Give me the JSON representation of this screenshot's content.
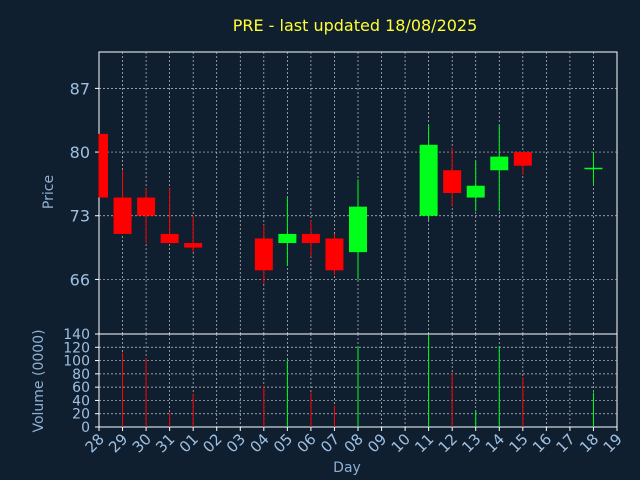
{
  "title": "PRE - last updated 18/08/2025",
  "colors": {
    "background": "#0f1f30",
    "title": "#ffff33",
    "axis_text": "#8fb0d0",
    "tick_text": "#9fc0e0",
    "frame": "#ffffff",
    "grid": "#c8c8c8",
    "up": "#00ff1a",
    "down": "#ff0000"
  },
  "chart_data": [
    {
      "type": "candlestick",
      "title": "PRE - last updated 18/08/2025",
      "ylabel": "Price",
      "ylim": [
        60,
        91
      ],
      "yticks": [
        66,
        73,
        80,
        87
      ],
      "grid": true,
      "x": [
        "28",
        "29",
        "30",
        "31",
        "01",
        "02",
        "03",
        "04",
        "05",
        "06",
        "07",
        "08",
        "09",
        "10",
        "11",
        "12",
        "13",
        "14",
        "15",
        "16",
        "17",
        "18",
        "19"
      ],
      "candles": [
        {
          "x": "28",
          "open": 82.0,
          "high": 82.0,
          "low": 75.0,
          "close": 75.0
        },
        {
          "x": "29",
          "open": 75.0,
          "high": 78.0,
          "low": 71.0,
          "close": 71.0
        },
        {
          "x": "30",
          "open": 75.0,
          "high": 76.0,
          "low": 70.0,
          "close": 73.0
        },
        {
          "x": "31",
          "open": 71.0,
          "high": 76.0,
          "low": 70.0,
          "close": 70.0
        },
        {
          "x": "01",
          "open": 70.0,
          "high": 73.0,
          "low": 69.0,
          "close": 69.5
        },
        {
          "x": "04",
          "open": 70.5,
          "high": 72.0,
          "low": 65.5,
          "close": 67.0
        },
        {
          "x": "05",
          "open": 70.0,
          "high": 75.0,
          "low": 67.5,
          "close": 71.0
        },
        {
          "x": "06",
          "open": 71.0,
          "high": 72.5,
          "low": 68.5,
          "close": 70.0
        },
        {
          "x": "07",
          "open": 70.5,
          "high": 71.0,
          "low": 66.5,
          "close": 67.0
        },
        {
          "x": "08",
          "open": 69.0,
          "high": 77.0,
          "low": 66.0,
          "close": 74.0
        },
        {
          "x": "11",
          "open": 73.0,
          "high": 83.0,
          "low": 72.5,
          "close": 80.8
        },
        {
          "x": "12",
          "open": 78.0,
          "high": 80.5,
          "low": 74.0,
          "close": 75.5
        },
        {
          "x": "13",
          "open": 75.0,
          "high": 79.0,
          "low": 73.5,
          "close": 76.3
        },
        {
          "x": "14",
          "open": 78.0,
          "high": 83.0,
          "low": 73.5,
          "close": 79.5
        },
        {
          "x": "15",
          "open": 80.0,
          "high": 80.0,
          "low": 77.5,
          "close": 78.5
        },
        {
          "x": "18",
          "open": 78.2,
          "high": 80.0,
          "low": 76.5,
          "close": 78.2
        }
      ]
    },
    {
      "type": "bar",
      "ylabel": "Volume (0000)",
      "xlabel": "Day",
      "ylim": [
        0,
        140
      ],
      "yticks": [
        0,
        20,
        40,
        60,
        80,
        100,
        120,
        140
      ],
      "grid": true,
      "volumes": [
        {
          "x": "29",
          "value": 112,
          "direction": "down"
        },
        {
          "x": "30",
          "value": 104,
          "direction": "down"
        },
        {
          "x": "31",
          "value": 22,
          "direction": "down"
        },
        {
          "x": "01",
          "value": 50,
          "direction": "down"
        },
        {
          "x": "04",
          "value": 62,
          "direction": "down"
        },
        {
          "x": "05",
          "value": 100,
          "direction": "up"
        },
        {
          "x": "06",
          "value": 52,
          "direction": "down"
        },
        {
          "x": "07",
          "value": 32,
          "direction": "down"
        },
        {
          "x": "08",
          "value": 122,
          "direction": "up"
        },
        {
          "x": "11",
          "value": 138,
          "direction": "up"
        },
        {
          "x": "12",
          "value": 82,
          "direction": "down"
        },
        {
          "x": "13",
          "value": 25,
          "direction": "up"
        },
        {
          "x": "14",
          "value": 122,
          "direction": "up"
        },
        {
          "x": "15",
          "value": 75,
          "direction": "down"
        },
        {
          "x": "18",
          "value": 52,
          "direction": "up"
        }
      ]
    }
  ]
}
